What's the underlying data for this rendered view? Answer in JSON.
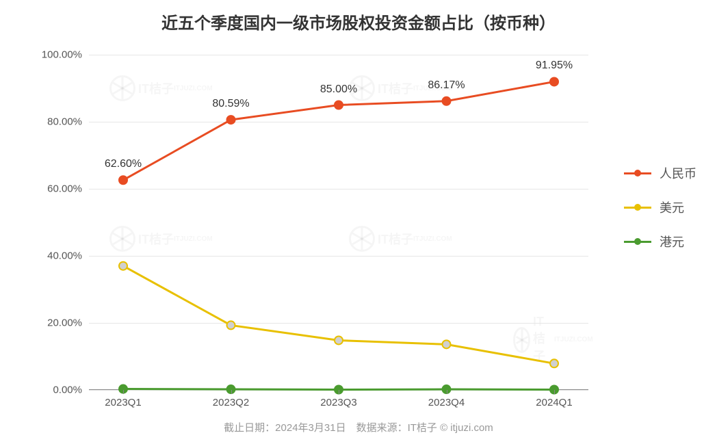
{
  "chart": {
    "type": "line",
    "title": "近五个季度国内一级市场股权投资金额占比（按币种）",
    "title_fontsize": 24,
    "title_color": "#333333",
    "background_color": "#ffffff",
    "grid_color": "#e6e6e6",
    "axis_color": "#888888",
    "label_fontsize": 15,
    "label_color": "#555555",
    "categories": [
      "2023Q1",
      "2023Q2",
      "2023Q3",
      "2023Q4",
      "2024Q1"
    ],
    "ylim": [
      0,
      100
    ],
    "ytick_step": 20,
    "ytick_format_suffix": ".00%",
    "series": [
      {
        "name": "人民币",
        "color": "#e84c22",
        "marker_fill": "#e84c22",
        "values": [
          62.6,
          80.59,
          85.0,
          86.17,
          91.95
        ],
        "show_labels": true,
        "label_suffix": "%"
      },
      {
        "name": "美元",
        "color": "#e8c000",
        "marker_fill": "#d0d0d0",
        "values": [
          37.0,
          19.3,
          14.8,
          13.6,
          7.9
        ],
        "show_labels": false
      },
      {
        "name": "港元",
        "color": "#4a9b2f",
        "marker_fill": "#4a9b2f",
        "values": [
          0.3,
          0.2,
          0.1,
          0.2,
          0.1
        ],
        "show_labels": false
      }
    ],
    "line_width": 3,
    "marker_radius": 6,
    "data_label_fontsize": 16,
    "data_label_color": "#333333",
    "legend_fontsize": 18,
    "legend_color": "#555555",
    "footer": "截止日期：2024年3月31日　数据来源：IT桔子 © itjuzi.com",
    "footer_fontsize": 15,
    "footer_color": "#999999",
    "watermark_text": "IT桔子"
  }
}
